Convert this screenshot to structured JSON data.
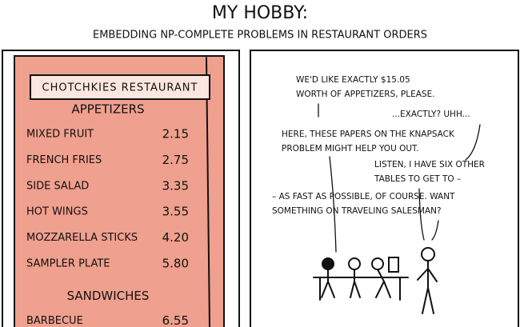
{
  "header": {
    "title": "MY HOBBY:",
    "subtitle": "EMBEDDING NP-COMPLETE PROBLEMS IN RESTAURANT ORDERS"
  },
  "menu": {
    "restaurant": "CHOTCHKIES RESTAURANT",
    "sections": [
      {
        "title": "APPETIZERS",
        "items": [
          [
            "MIXED FRUIT",
            "2.15"
          ],
          [
            "FRENCH FRIES",
            "2.75"
          ],
          [
            "SIDE SALAD",
            "3.35"
          ],
          [
            "HOT WINGS",
            "3.55"
          ],
          [
            "MOZZARELLA STICKS",
            "4.20"
          ],
          [
            "SAMPLER PLATE",
            "5.80"
          ]
        ]
      },
      {
        "title": "SANDWICHES",
        "items": [
          [
            "BARBECUE",
            "6.55"
          ]
        ]
      }
    ]
  },
  "dialogue": [
    [
      "WE'D LIKE EXACTLY $15.05",
      "WORTH OF APPETIZERS, PLEASE."
    ],
    [
      "...EXACTLY? UHH..."
    ],
    [
      "HERE, THESE PAPERS ON THE KNAPSACK",
      "PROBLEM MIGHT HELP YOU OUT."
    ],
    [
      "LISTEN, I HAVE SIX OTHER",
      "TABLES TO GET TO –"
    ],
    [
      "– AS FAST AS POSSIBLE, OF COURSE. WANT",
      "SOMETHING ON TRAVELING SALESMAN?"
    ]
  ]
}
